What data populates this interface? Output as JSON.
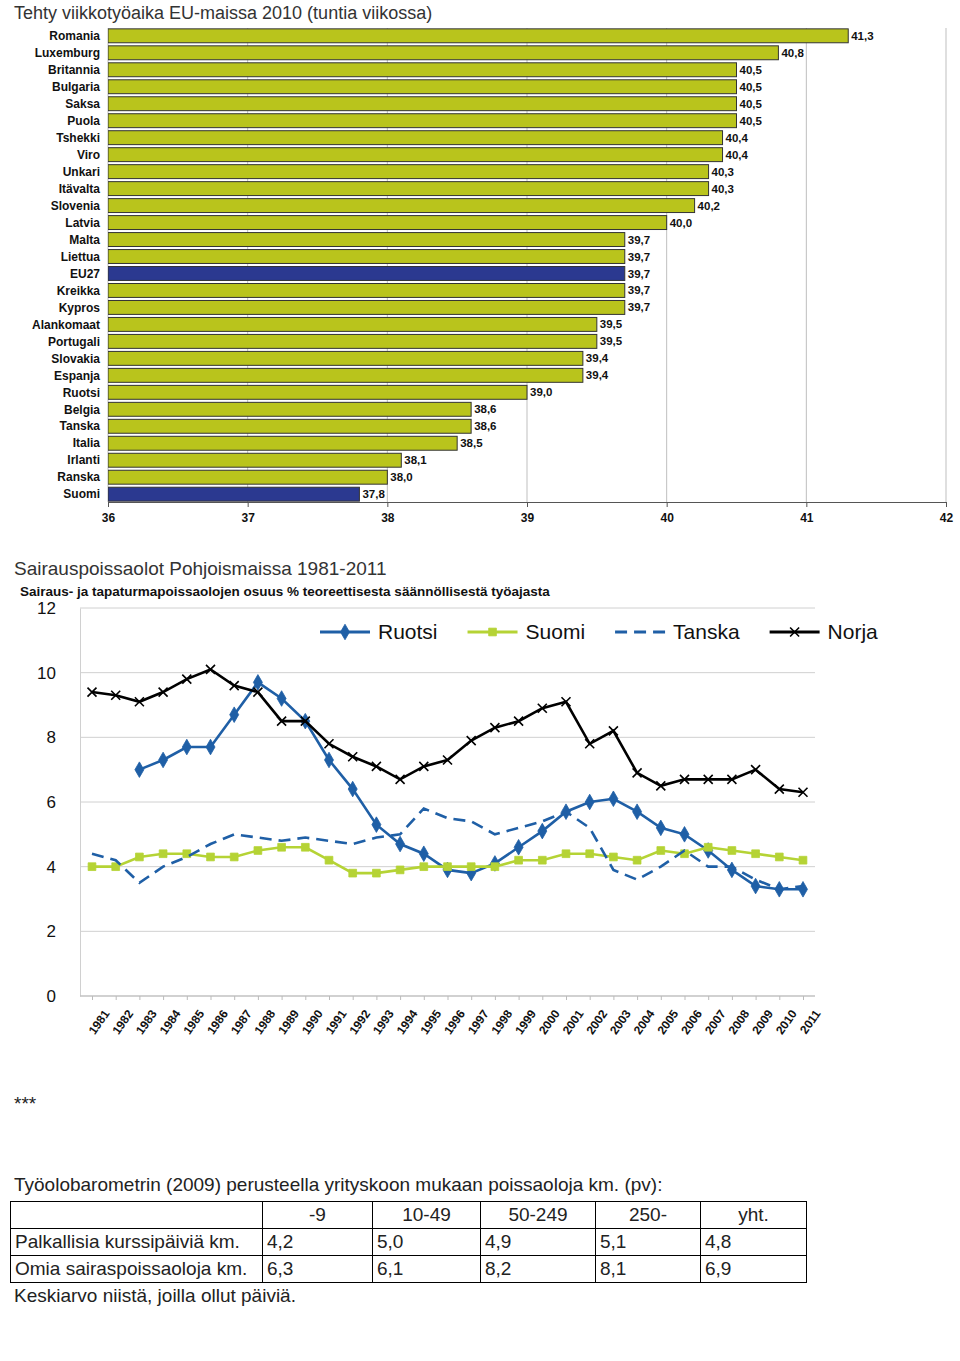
{
  "chart_data": [
    {
      "type": "bar",
      "title": "Tehty viikkotyöaika EU-maissa 2010 (tuntia viikossa)",
      "orientation": "horizontal",
      "categories": [
        "Romania",
        "Luxemburg",
        "Britannia",
        "Bulgaria",
        "Saksa",
        "Puola",
        "Tshekki",
        "Viro",
        "Unkari",
        "Itävalta",
        "Slovenia",
        "Latvia",
        "Malta",
        "Liettua",
        "EU27",
        "Kreikka",
        "Kypros",
        "Alankomaat",
        "Portugali",
        "Slovakia",
        "Espanja",
        "Ruotsi",
        "Belgia",
        "Tanska",
        "Italia",
        "Irlanti",
        "Ranska",
        "Suomi"
      ],
      "values": [
        41.3,
        40.8,
        40.5,
        40.5,
        40.5,
        40.5,
        40.4,
        40.4,
        40.3,
        40.3,
        40.2,
        40.0,
        39.7,
        39.7,
        39.7,
        39.7,
        39.7,
        39.5,
        39.5,
        39.4,
        39.4,
        39.0,
        38.6,
        38.6,
        38.5,
        38.1,
        38.0,
        37.8
      ],
      "value_labels": [
        "41,3",
        "40,8",
        "40,5",
        "40,5",
        "40,5",
        "40,5",
        "40,4",
        "40,4",
        "40,3",
        "40,3",
        "40,2",
        "40,0",
        "39,7",
        "39,7",
        "39,7",
        "39,7",
        "39,7",
        "39,5",
        "39,5",
        "39,4",
        "39,4",
        "39,0",
        "38,6",
        "38,6",
        "38,5",
        "38,1",
        "38,0",
        "37,8"
      ],
      "colors": [
        "#b9c41c",
        "#b9c41c",
        "#b9c41c",
        "#b9c41c",
        "#b9c41c",
        "#b9c41c",
        "#b9c41c",
        "#b9c41c",
        "#b9c41c",
        "#b9c41c",
        "#b9c41c",
        "#b9c41c",
        "#b9c41c",
        "#b9c41c",
        "#2b3990",
        "#b9c41c",
        "#b9c41c",
        "#b9c41c",
        "#b9c41c",
        "#b9c41c",
        "#b9c41c",
        "#b9c41c",
        "#b9c41c",
        "#b9c41c",
        "#b9c41c",
        "#b9c41c",
        "#b9c41c",
        "#2b3990"
      ],
      "data_labels": true,
      "xlim": [
        36,
        42
      ],
      "xticks": [
        36,
        37,
        38,
        39,
        40,
        41,
        42
      ],
      "grid": true
    },
    {
      "type": "line",
      "title": "Sairauspoissaolot Pohjoismaissa 1981-2011",
      "subtitle": "Sairaus- ja tapaturmapoissaolojen osuus % teoreettisesta säännöllisestä työajasta",
      "categories": [
        "1981",
        "1982",
        "1983",
        "1984",
        "1985",
        "1986",
        "1987",
        "1988",
        "1989",
        "1990",
        "1991",
        "1992",
        "1993",
        "1994",
        "1995",
        "1996",
        "1997",
        "1998",
        "1999",
        "2000",
        "2001",
        "2002",
        "2003",
        "2004",
        "2005",
        "2006",
        "2007",
        "2008",
        "2009",
        "2010",
        "2011"
      ],
      "series": [
        {
          "name": "Ruotsi",
          "color": "#1f5fa6",
          "marker": "diamond",
          "line_style": "solid",
          "values": [
            null,
            null,
            7.0,
            7.3,
            7.7,
            7.7,
            8.7,
            9.7,
            9.2,
            8.5,
            7.3,
            6.4,
            5.3,
            4.7,
            4.4,
            3.9,
            3.8,
            4.1,
            4.6,
            5.1,
            5.7,
            6.0,
            6.1,
            5.7,
            5.2,
            5.0,
            4.5,
            3.9,
            3.4,
            3.3,
            3.3
          ]
        },
        {
          "name": "Suomi",
          "color": "#b5d335",
          "marker": "square",
          "line_style": "solid",
          "values": [
            4.0,
            4.0,
            4.3,
            4.4,
            4.4,
            4.3,
            4.3,
            4.5,
            4.6,
            4.6,
            4.2,
            3.8,
            3.8,
            3.9,
            4.0,
            4.0,
            4.0,
            4.0,
            4.2,
            4.2,
            4.4,
            4.4,
            4.3,
            4.2,
            4.5,
            4.4,
            4.6,
            4.5,
            4.4,
            4.3,
            4.2
          ]
        },
        {
          "name": "Tanska",
          "color": "#1f5fa6",
          "marker": "none",
          "line_style": "dashed",
          "values": [
            4.4,
            4.2,
            3.5,
            4.0,
            4.3,
            4.7,
            5.0,
            4.9,
            4.8,
            4.9,
            4.8,
            4.7,
            4.9,
            5.0,
            5.8,
            5.5,
            5.4,
            5.0,
            5.2,
            5.4,
            5.7,
            5.2,
            3.9,
            3.6,
            4.0,
            4.5,
            4.0,
            4.0,
            3.6,
            3.3,
            3.4
          ]
        },
        {
          "name": "Norja",
          "color": "#000000",
          "marker": "x",
          "line_style": "solid",
          "values": [
            9.4,
            9.3,
            9.1,
            9.4,
            9.8,
            10.1,
            9.6,
            9.4,
            8.5,
            8.5,
            7.8,
            7.4,
            7.1,
            6.7,
            7.1,
            7.3,
            7.9,
            8.3,
            8.5,
            8.9,
            9.1,
            7.8,
            8.2,
            6.9,
            6.5,
            6.7,
            6.7,
            6.7,
            7.0,
            6.4,
            6.3
          ]
        }
      ],
      "ylim": [
        0,
        12
      ],
      "yticks": [
        0,
        2,
        4,
        6,
        8,
        10,
        12
      ],
      "grid": true,
      "legend": "top"
    }
  ],
  "separator": "***",
  "intro": "Työolobarometrin (2009) perusteella yrityskoon mukaan poissaoloja km. (pv):",
  "table": {
    "header": [
      null,
      "-9",
      "10-49",
      "50-249",
      "250-",
      "yht."
    ],
    "rows": [
      [
        "Palkallisia kurssipäiviä km.",
        "4,2",
        "5,0",
        "4,9",
        "5,1",
        "4,8"
      ],
      [
        "Omia sairaspoissaoloja km.",
        "6,3",
        "6,1",
        "8,2",
        "8,1",
        "6,9"
      ]
    ]
  },
  "footnote": "Keskiarvo niistä, joilla ollut päiviä."
}
